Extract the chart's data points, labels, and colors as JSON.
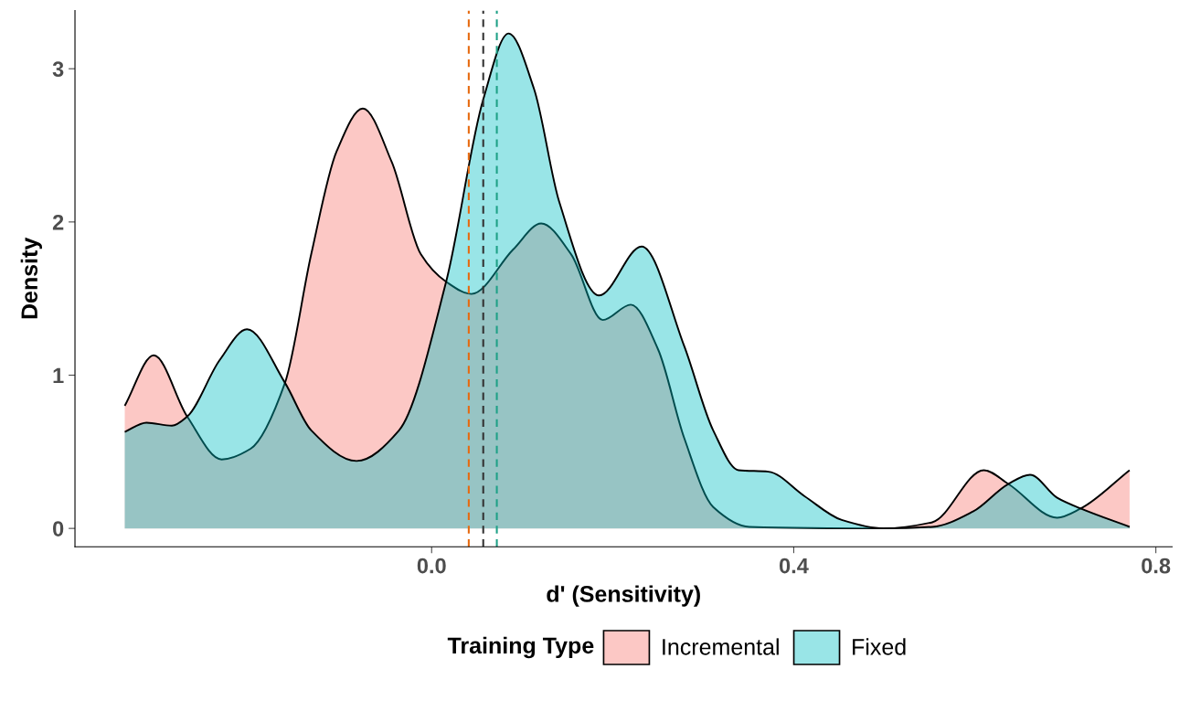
{
  "chart_data": {
    "type": "area",
    "xlabel": "d' (Sensitivity)",
    "ylabel": "Density",
    "legend_title": "Training Type",
    "legend": "bottom",
    "grid": false,
    "xlim": [
      -0.394,
      0.818
    ],
    "ylim": [
      -0.12,
      3.38
    ],
    "xticks": [
      {
        "value": 0,
        "label": "0.0"
      },
      0.4,
      0.8
    ],
    "yticks": [
      0,
      1,
      2,
      3
    ],
    "series": [
      {
        "name": "Incremental",
        "color": "#f8766d",
        "x": [
          -0.339,
          -0.307,
          -0.27,
          -0.232,
          -0.2,
          -0.162,
          -0.133,
          -0.105,
          -0.076,
          -0.044,
          -0.012,
          0.016,
          0.044,
          0.09,
          0.121,
          0.154,
          0.189,
          0.22,
          0.25,
          0.279,
          0.311,
          0.351,
          0.499,
          0.553,
          0.61,
          0.637,
          0.691,
          0.717,
          0.771
        ],
        "values": [
          0.8,
          1.13,
          0.73,
          0.45,
          0.52,
          0.95,
          1.79,
          2.46,
          2.74,
          2.39,
          1.79,
          1.61,
          1.53,
          1.82,
          1.99,
          1.79,
          1.36,
          1.46,
          1.17,
          0.59,
          0.14,
          0.01,
          0,
          0.04,
          0.38,
          0.29,
          0.07,
          0.13,
          0.38
        ]
      },
      {
        "name": "Fixed",
        "color": "#00bfc4",
        "x": [
          -0.339,
          -0.315,
          -0.287,
          -0.27,
          -0.234,
          -0.204,
          -0.162,
          -0.133,
          -0.083,
          -0.036,
          0.016,
          0.057,
          0.085,
          0.113,
          0.141,
          0.185,
          0.232,
          0.279,
          0.311,
          0.339,
          0.372,
          0.412,
          0.453,
          0.499,
          0.553,
          0.598,
          0.637,
          0.661,
          0.691,
          0.717,
          0.771
        ],
        "values": [
          0.63,
          0.69,
          0.67,
          0.73,
          1.1,
          1.3,
          0.95,
          0.64,
          0.44,
          0.64,
          1.61,
          2.8,
          3.23,
          2.87,
          2.13,
          1.52,
          1.84,
          1.19,
          0.64,
          0.38,
          0.37,
          0.21,
          0.055,
          0,
          0.01,
          0.11,
          0.29,
          0.35,
          0.2,
          0.13,
          0.01
        ]
      }
    ],
    "ref_lines": [
      {
        "axis": "x",
        "value": 0.041,
        "color": "#e66a10",
        "line_style": "dashed"
      },
      {
        "axis": "x",
        "value": 0.072,
        "color": "#1fa187",
        "line_style": "dashed"
      },
      {
        "axis": "x",
        "value": 0.057,
        "color": "#333333",
        "line_style": "dashed"
      }
    ]
  }
}
